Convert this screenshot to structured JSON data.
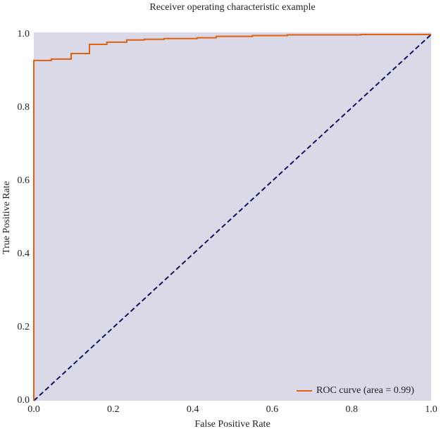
{
  "chart_data": {
    "type": "line",
    "title": "Receiver operating characteristic example",
    "xlabel": "False Positive Rate",
    "ylabel": "True Positive Rate",
    "xlim": [
      0,
      1
    ],
    "ylim": [
      0,
      1
    ],
    "xticks": [
      {
        "value": 0,
        "label": "0.0"
      },
      {
        "value": 0.2,
        "label": "0.2"
      },
      {
        "value": 0.4,
        "label": "0.4"
      },
      {
        "value": 0.6,
        "label": "0.6"
      },
      {
        "value": 0.8,
        "label": "0.8"
      },
      {
        "value": 1,
        "label": "1.0"
      }
    ],
    "yticks": [
      {
        "value": 0,
        "label": "0.0"
      },
      {
        "value": 0.2,
        "label": "0.2"
      },
      {
        "value": 0.4,
        "label": "0.4"
      },
      {
        "value": 0.6,
        "label": "0.6"
      },
      {
        "value": 0.8,
        "label": "0.8"
      },
      {
        "value": 1,
        "label": "1.0"
      }
    ],
    "background": "#d9d9e7",
    "legend": "lower right",
    "diagonal_color": "#0b1560",
    "series": [
      {
        "name": "ROC curve (area = 0.99)",
        "color": "#e0600f",
        "x": [
          0,
          0,
          0.044,
          0.044,
          0.094,
          0.094,
          0.14,
          0.14,
          0.184,
          0.184,
          0.234,
          0.234,
          0.278,
          0.278,
          0.328,
          0.328,
          0.411,
          0.411,
          0.459,
          0.459,
          0.55,
          0.55,
          0.638,
          0.638,
          0.823,
          0.823,
          1
        ],
        "values": [
          0,
          0.929,
          0.929,
          0.933,
          0.933,
          0.948,
          0.948,
          0.973,
          0.973,
          0.979,
          0.979,
          0.985,
          0.985,
          0.987,
          0.987,
          0.989,
          0.989,
          0.991,
          0.991,
          0.995,
          0.995,
          0.997,
          0.997,
          0.999,
          0.999,
          1,
          1
        ]
      }
    ]
  }
}
